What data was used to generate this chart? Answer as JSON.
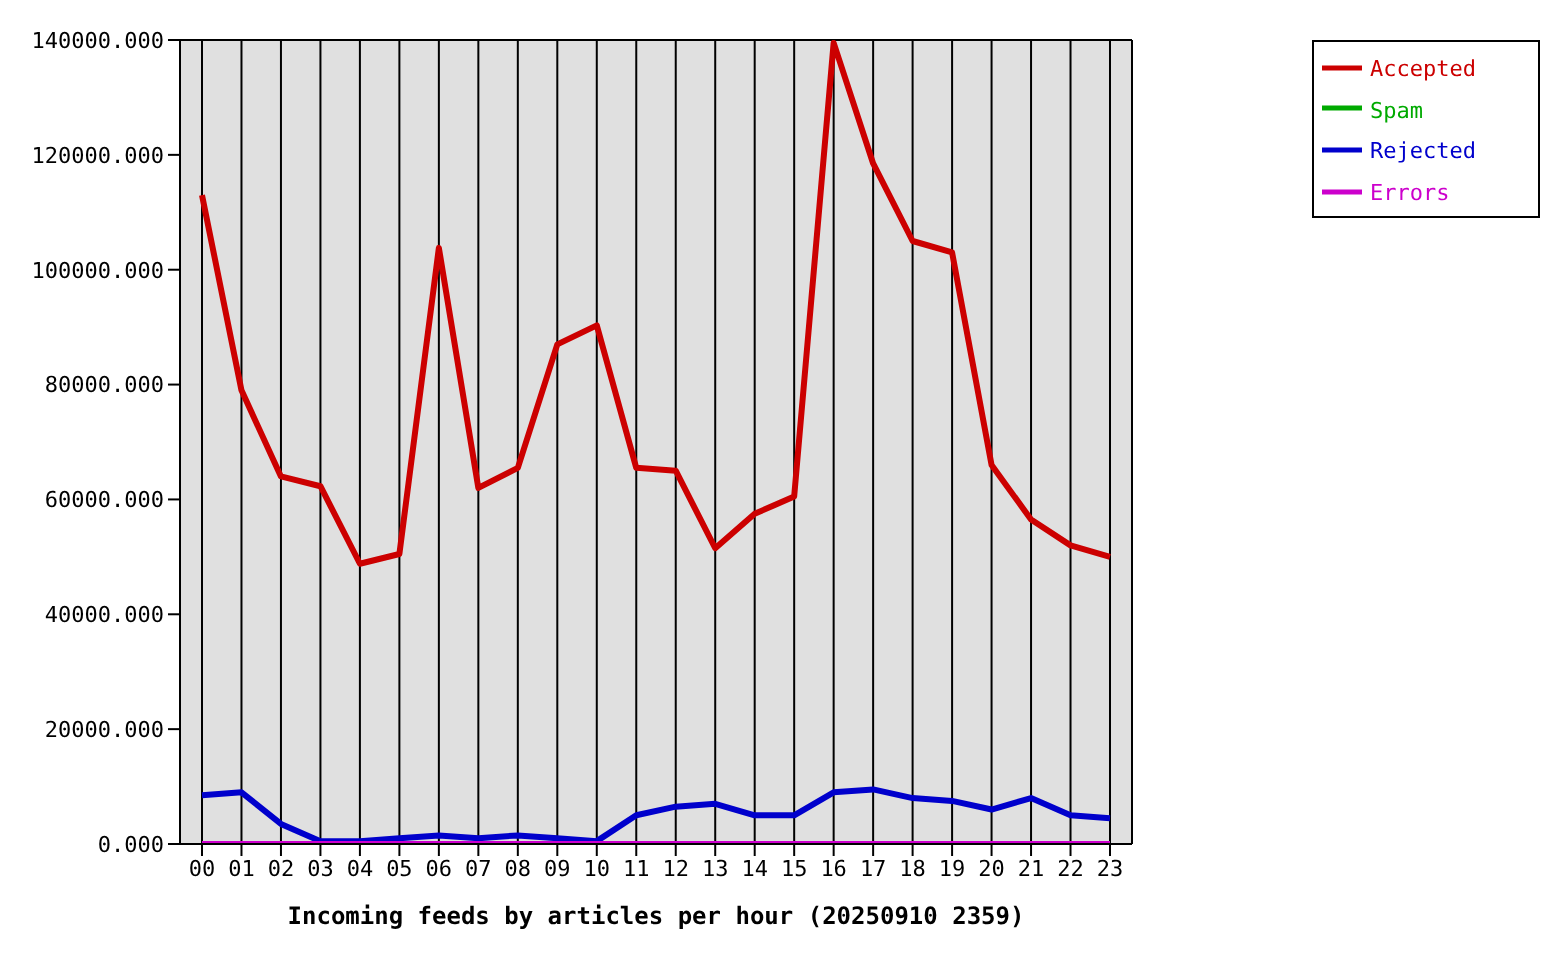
{
  "chart_data": {
    "type": "line",
    "xlabel": "Incoming feeds by articles per hour (20250910 2359)",
    "categories": [
      "00",
      "01",
      "02",
      "03",
      "04",
      "05",
      "06",
      "07",
      "08",
      "09",
      "10",
      "11",
      "12",
      "13",
      "14",
      "15",
      "16",
      "17",
      "18",
      "19",
      "20",
      "21",
      "22",
      "23"
    ],
    "series": [
      {
        "name": "Accepted",
        "color": "#cc0000",
        "values": [
          113000,
          79000,
          64000,
          62300,
          48800,
          50500,
          103800,
          62000,
          65500,
          87000,
          90300,
          65500,
          65000,
          51500,
          57500,
          60500,
          139500,
          118500,
          105000,
          103000,
          66000,
          56500,
          52000,
          50000
        ]
      },
      {
        "name": "Spam",
        "color": "#00aa00",
        "values": [
          null,
          null,
          null,
          null,
          null,
          null,
          null,
          null,
          null,
          null,
          null,
          null,
          null,
          null,
          null,
          null,
          null,
          null,
          null,
          null,
          null,
          null,
          null,
          null
        ]
      },
      {
        "name": "Rejected",
        "color": "#0000cc",
        "values": [
          8500,
          9000,
          3500,
          500,
          500,
          1000,
          1500,
          1000,
          1500,
          1000,
          500,
          5000,
          6500,
          7000,
          5000,
          5000,
          9000,
          9500,
          8000,
          7500,
          6000,
          8000,
          5000,
          4500
        ]
      },
      {
        "name": "Errors",
        "color": "#cc00cc",
        "values": [
          0,
          0,
          0,
          0,
          0,
          0,
          0,
          0,
          0,
          0,
          0,
          0,
          0,
          0,
          0,
          0,
          0,
          0,
          0,
          0,
          0,
          0,
          0,
          0
        ]
      }
    ],
    "ylim": [
      0,
      140000
    ],
    "yticks": [
      {
        "value": 0,
        "label": "0.000"
      },
      {
        "value": 20000,
        "label": "20000.000"
      },
      {
        "value": 40000,
        "label": "40000.000"
      },
      {
        "value": 60000,
        "label": "60000.000"
      },
      {
        "value": 80000,
        "label": "80000.000"
      },
      {
        "value": 100000,
        "label": "100000.000"
      },
      {
        "value": 120000,
        "label": "120000.000"
      },
      {
        "value": 140000,
        "label": "140000.000"
      }
    ],
    "grid": true,
    "legend": "top right",
    "marker": "none",
    "line_style": "solid"
  }
}
